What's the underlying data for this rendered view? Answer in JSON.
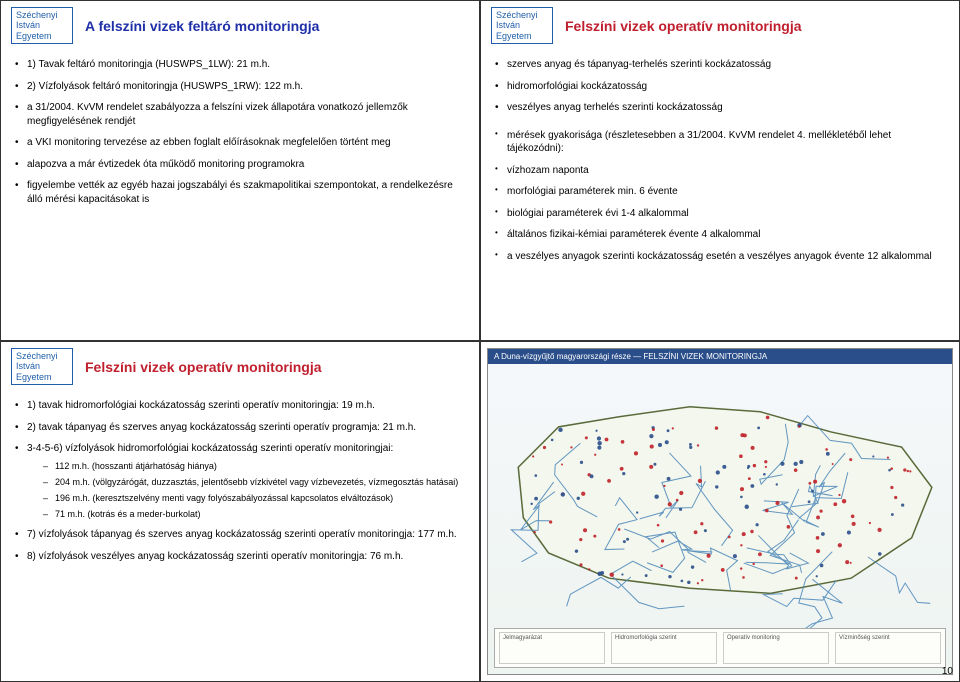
{
  "affiliation": "Széchenyi\nIstván\nEgyetem",
  "pageNumber": "10",
  "slide1": {
    "title": "A felszíni vizek feltáró monitoringja",
    "items": [
      {
        "text": "1) Tavak feltáró monitoringja (HUSWPS_1LW): 21 m.h.",
        "cls": "blue"
      },
      {
        "text": "2) Vízfolyások feltáró monitoringja (HUSWPS_1RW): 122 m.h.",
        "cls": "blue"
      },
      {
        "text": "a 31/2004. KvVM rendelet szabályozza a felszíni vizek állapotára vonatkozó jellemzők megfigyelésének rendjét"
      },
      {
        "text": "a VKI monitoring tervezése az ebben foglalt előírásoknak megfelelően történt meg"
      },
      {
        "text": "alapozva a már évtizedek óta működő monitoring programokra"
      },
      {
        "text": "figyelembe vették az egyéb hazai jogszabályi és szakmapolitikai szempontokat, a rendelkezésre álló mérési kapacitásokat is"
      }
    ]
  },
  "slide2": {
    "title": "Felszíni vizek operatív monitoringja",
    "groupA": [
      {
        "text": "szerves anyag és tápanyag-terhelés szerinti kockázatosság"
      },
      {
        "text": "hidromorfológiai kockázatosság"
      },
      {
        "text": "veszélyes anyag terhelés szerinti kockázatosság"
      }
    ],
    "groupB": [
      {
        "text": "mérések gyakorisága (részletesebben a 31/2004. KvVM rendelet 4. mellékletéből lehet tájékozódni):"
      },
      {
        "text": "vízhozam naponta"
      },
      {
        "text": "morfológiai paraméterek min. 6 évente"
      },
      {
        "text": "biológiai paraméterek évi 1-4 alkalommal"
      },
      {
        "text": "általános fizikai-kémiai paraméterek évente 4 alkalommal"
      },
      {
        "text": "a veszélyes anyagok szerinti kockázatosság esetén a veszélyes anyagok évente 12 alkalommal"
      }
    ]
  },
  "slide3": {
    "title": "Felszíni vizek operatív monitoringja",
    "items": [
      {
        "text": "1) tavak hidromorfológiai kockázatosság szerinti operatív monitoringja: 19 m.h.",
        "cls": "blue"
      },
      {
        "text": "2) tavak tápanyag és szerves anyag kockázatosság szerinti operatív programja: 21 m.h.",
        "cls": "redtxt"
      },
      {
        "text": "3-4-5-6) vízfolyások hidromorfológiai kockázatosság szerinti operatív monitoringjai:",
        "cls": "blue",
        "sub": [
          "112 m.h. (hosszanti átjárhatóság hiánya)",
          "204 m.h. (völgyzárógát, duzzasztás, jelentősebb vízkivétel vagy vízbevezetés, vízmegosztás hatásai)",
          "196 m.h. (keresztszelvény menti vagy folyószabályozással kapcsolatos elváltozások)",
          "71 m.h. (kotrás és a meder-burkolat)"
        ]
      },
      {
        "text": "7) vízfolyások tápanyag és szerves anyag kockázatosság szerinti operatív monitoringja: 177 m.h.",
        "cls": "redtxt"
      },
      {
        "text": "8) vízfolyások veszélyes anyag kockázatosság szerinti operatív monitoringja: 76 m.h."
      }
    ]
  },
  "slide4": {
    "mapTitle": "A Duna-vízgyűjtő magyarországi része — FELSZÍNI VIZEK MONITORINGJA",
    "legendBoxes": [
      "Jelmagyarázat",
      "Hidromorfológia szerint",
      "Operatív monitoring",
      "Vízminőség szerint"
    ],
    "nodeColor": "#c02028",
    "riverColor": "#4a86b8",
    "borderColor": "#5a6a3a"
  },
  "colors": {
    "titleBlue": "#1f2fa8",
    "titleRed": "#c01f2e",
    "affilBlue": "#1f5fa8"
  }
}
